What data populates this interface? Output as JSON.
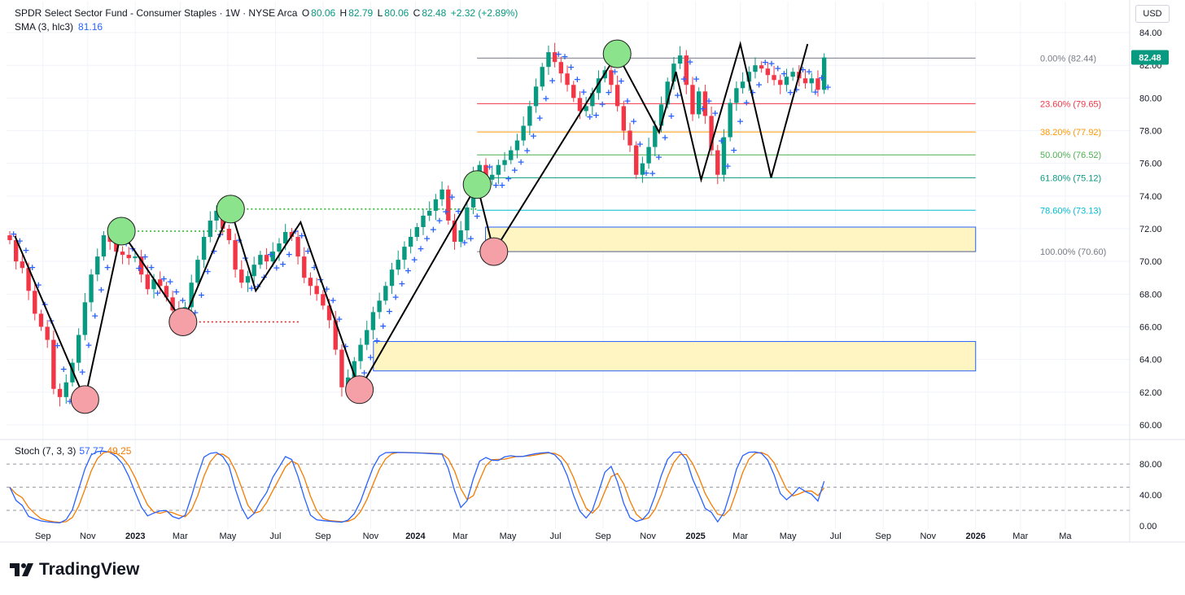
{
  "header": {
    "symbol": "SPDR Select Sector Fund - Consumer Staples · 1W · NYSE Arca",
    "open_label": "O",
    "open": "80.06",
    "high_label": "H",
    "high": "82.79",
    "low_label": "L",
    "low": "80.06",
    "close_label": "C",
    "close": "82.48",
    "change": "+2.32 (+2.89%)"
  },
  "sma": {
    "label": "SMA (3, hlc3)",
    "value": "81.16"
  },
  "stoch": {
    "label": "Stoch (7, 3, 3)",
    "k_value": "57.77",
    "d_value": "49.25"
  },
  "currency": "USD",
  "brand": "TradingView",
  "last_price_tag": "82.48",
  "colors": {
    "up": "#089981",
    "down": "#f23645",
    "sma": "#2962ff",
    "stoch_k": "#2962ff",
    "stoch_d": "#f57c00",
    "zone_fill": "#fff5c2",
    "zone_border": "#2962ff",
    "pivot_high": "#8be38b",
    "pivot_low": "#f4a0a6"
  },
  "chart_data": {
    "type": "candlestick",
    "title": "SPDR Select Sector Fund - Consumer Staples · 1W · NYSE Arca",
    "x_axis_ticks": [
      "Sep",
      "Nov",
      "2023",
      "Mar",
      "May",
      "Jul",
      "Sep",
      "Nov",
      "2024",
      "Mar",
      "May",
      "Jul",
      "Sep",
      "Nov",
      "2025",
      "Mar",
      "May",
      "Jul",
      "Sep",
      "Nov",
      "2026",
      "Mar",
      "Ma"
    ],
    "y_axis_ticks": [
      "84.00",
      "82.00",
      "80.00",
      "78.00",
      "76.00",
      "74.00",
      "72.00",
      "70.00",
      "68.00",
      "66.00",
      "64.00",
      "62.00",
      "60.00"
    ],
    "ylim": [
      59.5,
      84.5
    ],
    "price_path": [
      71.3,
      70.0,
      69.6,
      68.2,
      66.8,
      66.0,
      65.2,
      62.2,
      61.7,
      62.6,
      63.8,
      65.5,
      67.5,
      69.2,
      70.3,
      71.6,
      71.2,
      70.6,
      70.4,
      70.2,
      70.3,
      69.2,
      68.3,
      68.9,
      68.5,
      67.8,
      67.0,
      66.9,
      67.2,
      68.7,
      70.1,
      71.5,
      72.5,
      73.1,
      72.0,
      71.3,
      69.5,
      68.7,
      69.1,
      69.8,
      70.4,
      70.0,
      70.6,
      71.1,
      71.8,
      71.5,
      70.3,
      69.0,
      68.5,
      68.0,
      67.3,
      66.4,
      64.6,
      62.3,
      62.9,
      63.9,
      64.9,
      65.8,
      66.9,
      67.6,
      68.5,
      69.5,
      70.1,
      70.9,
      71.5,
      72.1,
      72.8,
      73.1,
      73.8,
      74.4,
      72.5,
      71.2,
      71.9,
      73.3,
      75.3,
      75.9,
      75.0,
      75.3,
      75.9,
      76.2,
      76.8,
      77.4,
      78.3,
      79.5,
      80.7,
      81.9,
      82.8,
      82.2,
      81.5,
      80.8,
      80.0,
      79.2,
      79.5,
      80.3,
      81.2,
      81.7,
      80.8,
      79.5,
      78.0,
      77.1,
      75.3,
      76.0,
      77.0,
      78.3,
      79.6,
      81.0,
      82.1,
      82.6,
      80.8,
      79.0,
      80.4,
      78.9,
      76.8,
      75.3,
      77.6,
      79.7,
      80.6,
      81.0,
      81.6,
      82.0,
      81.8,
      81.4,
      81.1,
      80.8,
      81.3,
      81.6,
      81.2,
      80.9,
      81.2,
      80.5,
      82.48
    ],
    "sma_value": 81.16,
    "zigzag": [
      [
        2022.57,
        71.55
      ],
      [
        2022.82,
        61.55
      ],
      [
        2022.95,
        71.85
      ],
      [
        2023.17,
        66.3
      ],
      [
        2023.34,
        73.2
      ],
      [
        2023.43,
        68.2
      ],
      [
        2023.59,
        72.4
      ],
      [
        2023.8,
        62.15
      ],
      [
        2024.22,
        74.7
      ],
      [
        2024.28,
        70.6
      ],
      [
        2024.72,
        82.7
      ],
      [
        2024.87,
        77.9
      ],
      [
        2024.93,
        81.6
      ],
      [
        2025.02,
        75.0
      ],
      [
        2025.16,
        83.3
      ],
      [
        2025.27,
        75.12
      ],
      [
        2025.4,
        83.3
      ]
    ],
    "pivot_highs": [
      [
        2022.95,
        71.85
      ],
      [
        2023.34,
        73.2
      ],
      [
        2024.22,
        74.7
      ],
      [
        2024.72,
        82.7
      ]
    ],
    "pivot_lows": [
      [
        2022.82,
        61.55
      ],
      [
        2023.17,
        66.3
      ],
      [
        2023.8,
        62.15
      ],
      [
        2024.28,
        70.6
      ]
    ],
    "horizontal_dotted": [
      {
        "from": 2022.95,
        "to": 2023.34,
        "y": 71.85,
        "color": "green"
      },
      {
        "from": 2023.34,
        "to": 2024.22,
        "y": 73.2,
        "color": "green"
      },
      {
        "from": 2023.17,
        "to": 2023.59,
        "y": 66.3,
        "color": "red"
      }
    ],
    "fibonacci": [
      {
        "label": "0.00% (82.44)",
        "level": 82.44,
        "color": "#787b86"
      },
      {
        "label": "23.60% (79.65)",
        "level": 79.65,
        "color": "#f23645"
      },
      {
        "label": "38.20% (77.92)",
        "level": 77.92,
        "color": "#ff9800"
      },
      {
        "label": "50.00% (76.52)",
        "level": 76.52,
        "color": "#4caf50"
      },
      {
        "label": "61.80% (75.12)",
        "level": 75.12,
        "color": "#089981"
      },
      {
        "label": "78.60% (73.13)",
        "level": 73.13,
        "color": "#00bcd4"
      },
      {
        "label": "100.00% (70.60)",
        "level": 70.6,
        "color": "#787b86"
      }
    ],
    "zones": [
      {
        "top": 72.1,
        "bottom": 70.6,
        "from": 2024.25,
        "to": 2026.0
      },
      {
        "top": 65.1,
        "bottom": 63.3,
        "from": 2023.85,
        "to": 2026.0
      }
    ],
    "stochastic": {
      "y_ticks": [
        "80.00",
        "40.00",
        "0.00"
      ],
      "levels": [
        80,
        50,
        20
      ],
      "k_last": 57.77,
      "d_last": 49.25
    }
  }
}
